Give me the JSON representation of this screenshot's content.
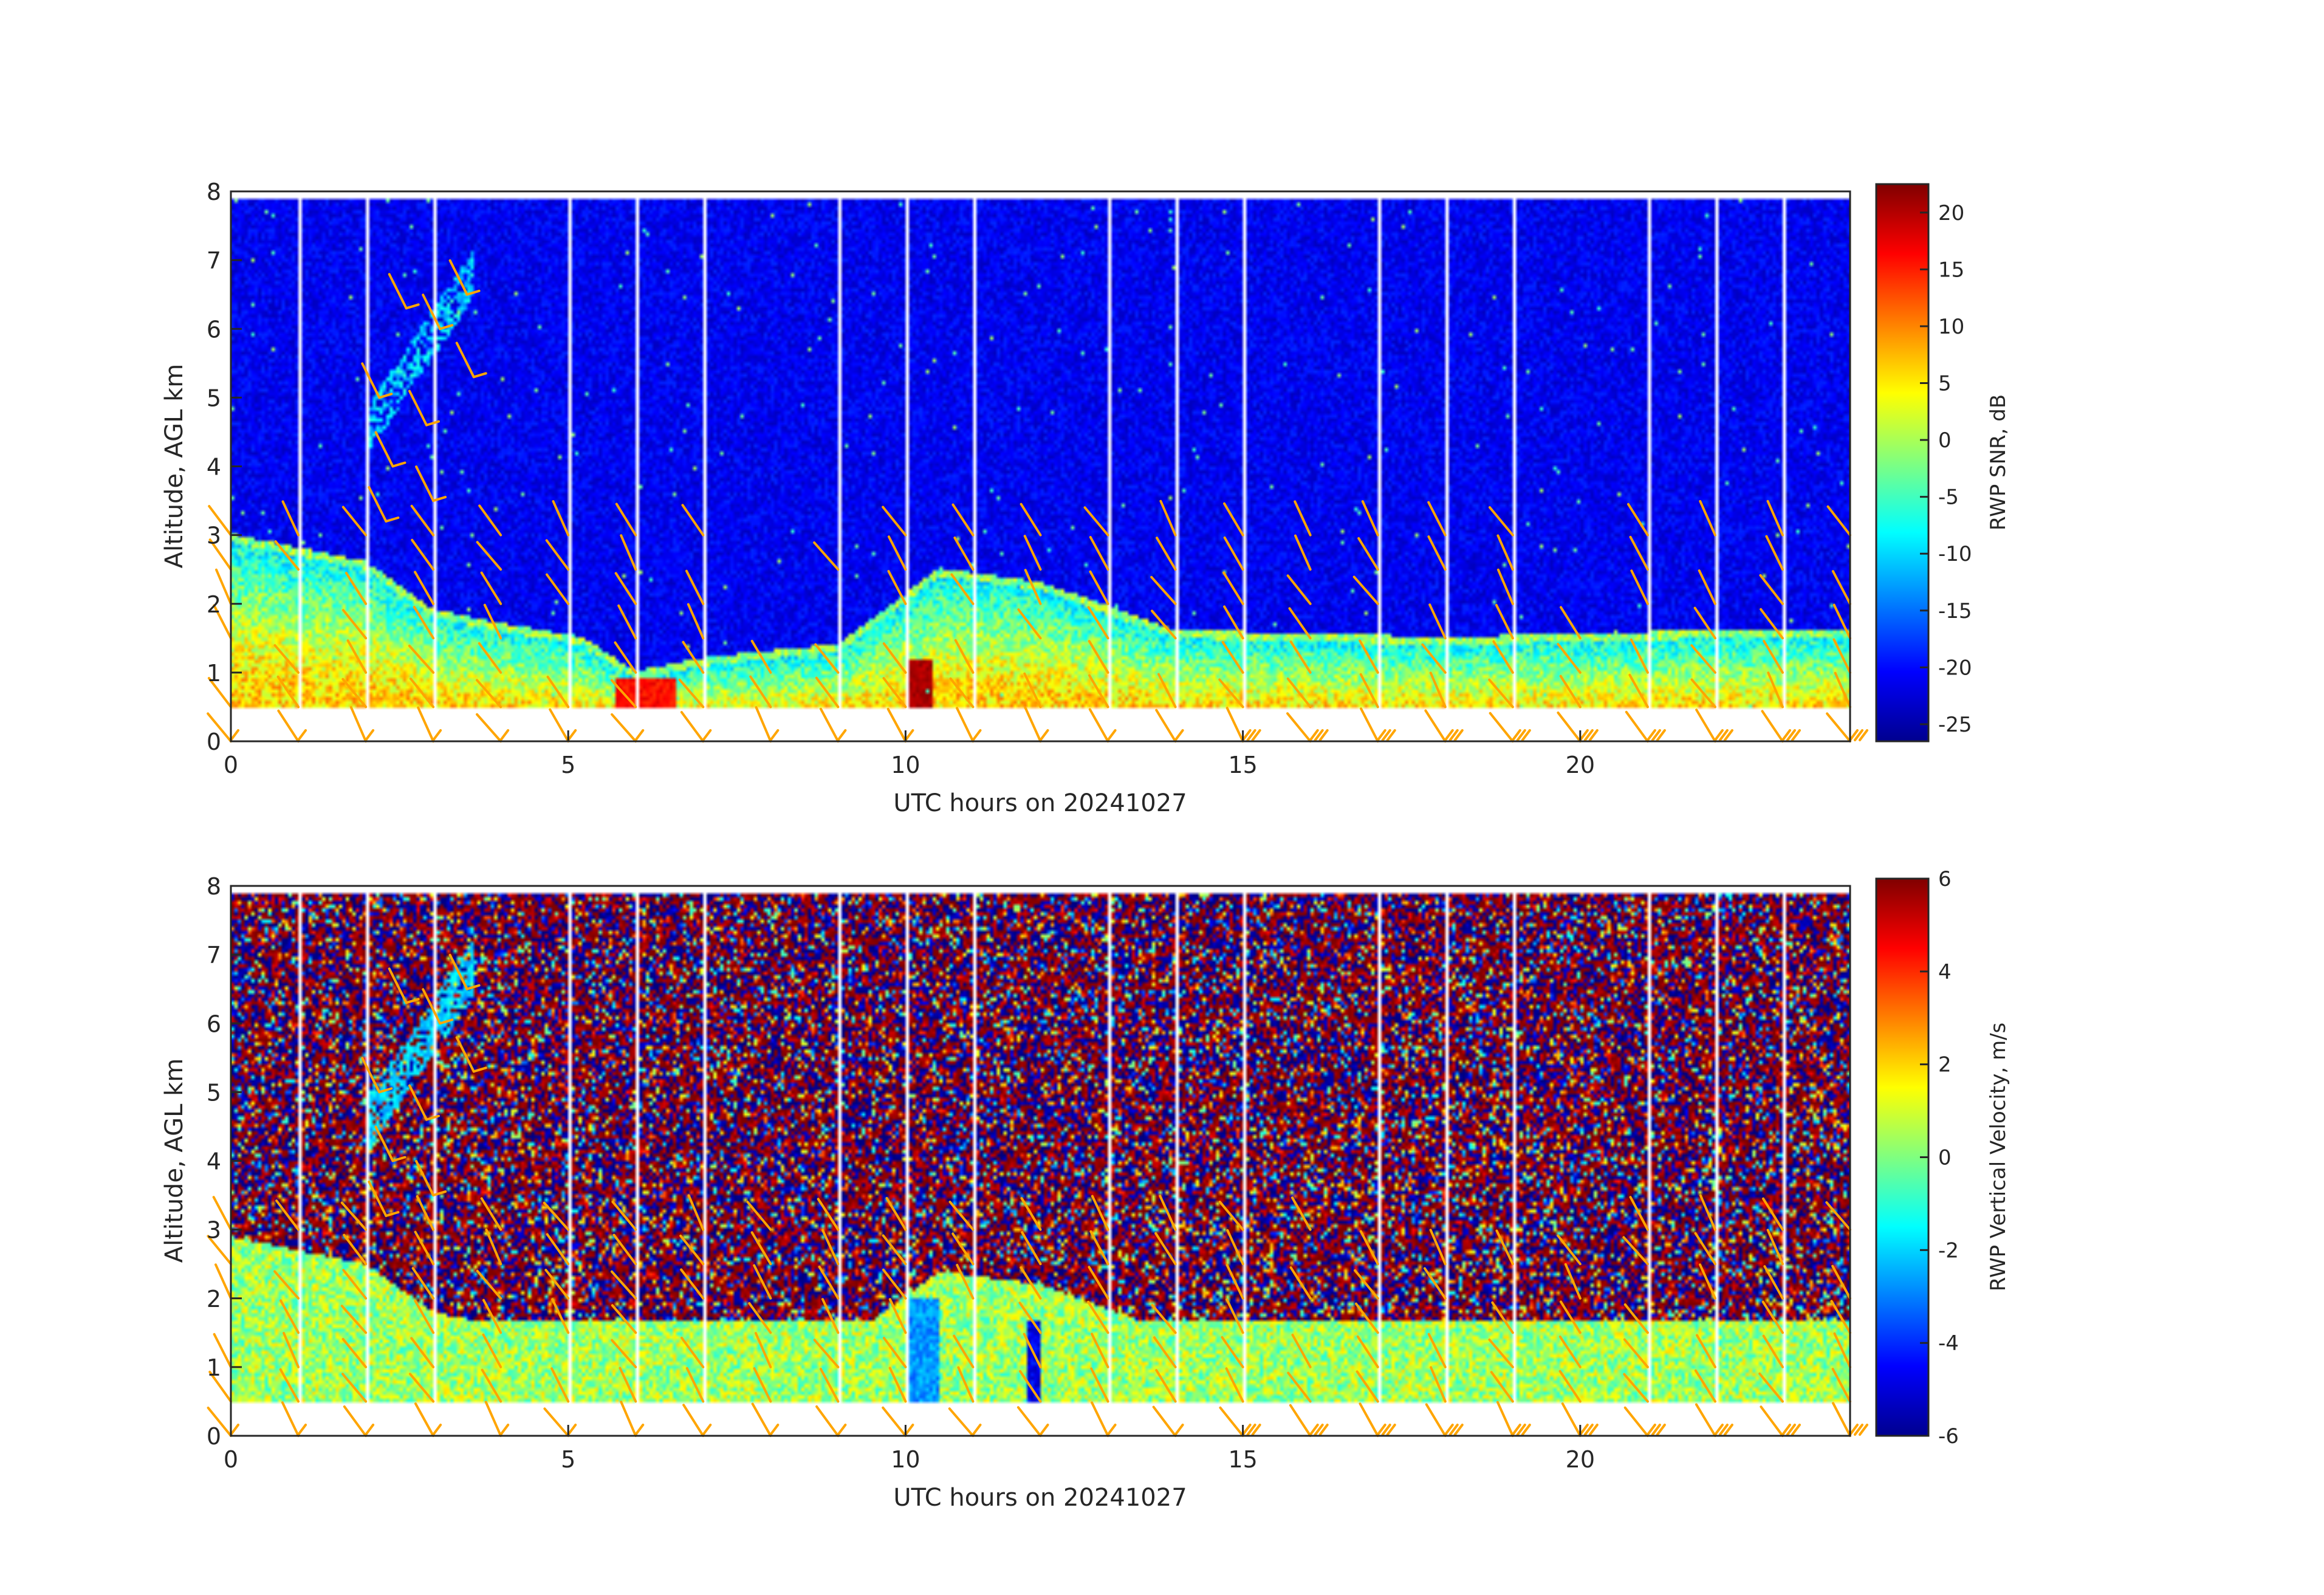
{
  "figure": {
    "background": "#ffffff",
    "barb_color": "#ffa500",
    "gap_color": "#ffffff"
  },
  "chart_data": [
    {
      "type": "heatmap",
      "title": "",
      "xlabel": "UTC hours on 20241027",
      "ylabel": "Altitude, AGL km",
      "xlim": [
        0,
        24
      ],
      "ylim": [
        0,
        8
      ],
      "xticks": [
        "0",
        "5",
        "10",
        "15",
        "20"
      ],
      "xtick_values": [
        0,
        5,
        10,
        15,
        20
      ],
      "yticks": [
        "0",
        "1",
        "2",
        "3",
        "4",
        "5",
        "6",
        "7",
        "8"
      ],
      "ytick_values": [
        0,
        1,
        2,
        3,
        4,
        5,
        6,
        7,
        8
      ],
      "data_altitude_range_km": [
        0.5,
        7.9
      ],
      "colormap": "jet",
      "colorbar": {
        "label": "RWP SNR, dB",
        "clim": [
          -26.5,
          22.5
        ],
        "ticks": [
          "20",
          "15",
          "10",
          "5",
          "0",
          "-5",
          "-10",
          "-15",
          "-20",
          "-25"
        ],
        "tick_values": [
          20,
          15,
          10,
          5,
          0,
          -5,
          -10,
          -15,
          -20,
          -25
        ]
      },
      "field": "snr",
      "background_level_dB": -21,
      "features": [
        {
          "name": "boundary layer top",
          "hours": [
            0,
            2,
            3,
            4,
            5.2,
            6,
            7,
            9,
            10.5,
            12,
            14,
            18,
            22,
            24
          ],
          "top_km": [
            2.9,
            2.5,
            1.8,
            1.6,
            1.4,
            0.9,
            1.1,
            1.3,
            2.4,
            2.2,
            1.5,
            1.4,
            1.5,
            1.5
          ],
          "snr_dB": 2
        },
        {
          "name": "upper plume",
          "hours": [
            2.0,
            3.6
          ],
          "altitude_km": [
            4.5,
            6.8
          ],
          "snr_dB": -10
        }
      ],
      "wind_barbs": "vertical column of wind barbs plotted every half hour, altitudes 0.5-6.5 km"
    },
    {
      "type": "heatmap",
      "title": "",
      "xlabel": "UTC hours on 20241027",
      "ylabel": "Altitude, AGL km",
      "xlim": [
        0,
        24
      ],
      "ylim": [
        0,
        8
      ],
      "xticks": [
        "0",
        "5",
        "10",
        "15",
        "20"
      ],
      "xtick_values": [
        0,
        5,
        10,
        15,
        20
      ],
      "yticks": [
        "0",
        "1",
        "2",
        "3",
        "4",
        "5",
        "6",
        "7",
        "8"
      ],
      "ytick_values": [
        0,
        1,
        2,
        3,
        4,
        5,
        6,
        7,
        8
      ],
      "data_altitude_range_km": [
        0.5,
        7.9
      ],
      "colormap": "jet",
      "colorbar": {
        "label": "RWP Vertical Velocity, m/s",
        "clim": [
          -6,
          6
        ],
        "ticks": [
          "6",
          "4",
          "2",
          "0",
          "-2",
          "-4",
          "-6"
        ],
        "tick_values": [
          6,
          4,
          2,
          0,
          -2,
          -4,
          -6
        ]
      },
      "field": "velocity",
      "boundary_layer_velocity_m_s": [
        -1.5,
        1.5
      ],
      "above_layer_velocity_m_s": "noisy, full range -6 to 6",
      "wind_barbs": "vertical column of wind barbs plotted every half hour, altitudes 0.5-6.5 km"
    }
  ]
}
